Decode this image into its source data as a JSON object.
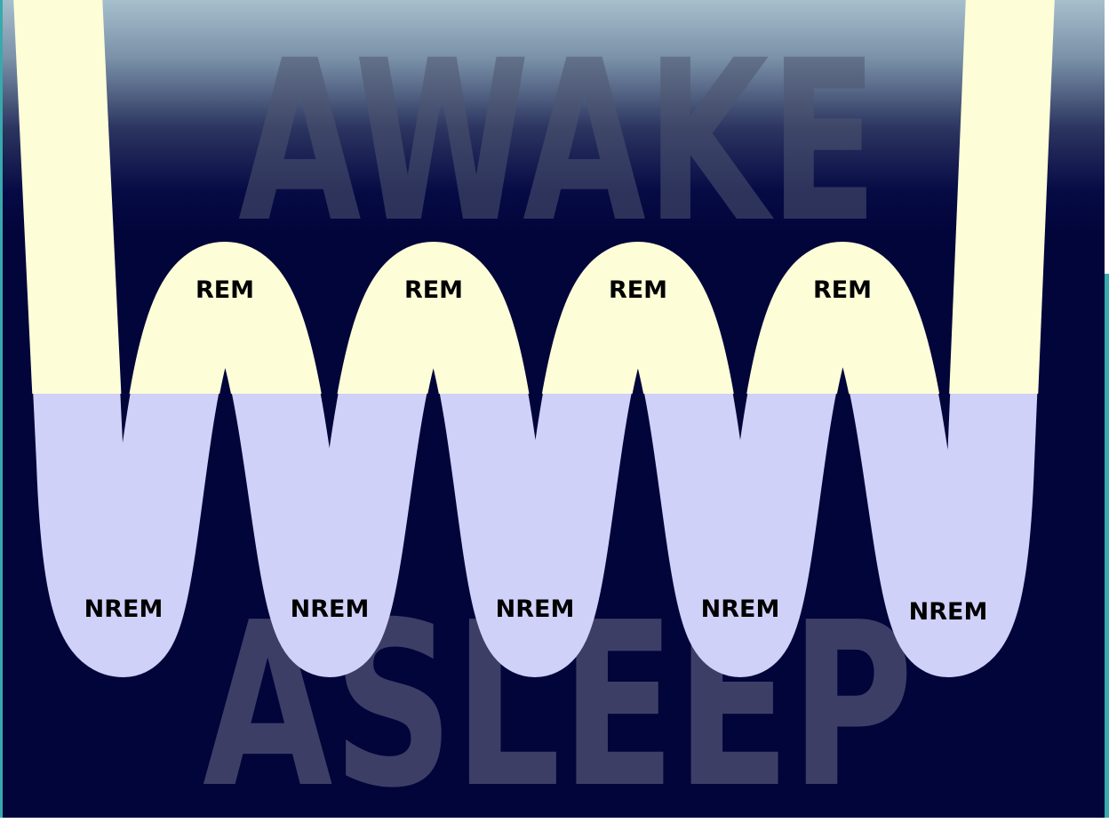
{
  "diagram": {
    "background_word_top": "AWAKE",
    "background_word_bottom": "ASLEEP",
    "rem_labels": [
      "REM",
      "REM",
      "REM",
      "REM"
    ],
    "nrem_labels": [
      "NREM",
      "NREM",
      "NREM",
      "NREM",
      "NREM"
    ]
  },
  "colors": {
    "night": "#02053a",
    "sky_top": "#a6bfcc",
    "channel_awake": "#3a3c6e",
    "channel_nrem": "#d0d1f8",
    "channel_rem": "#fdfdd8",
    "watermark_awake": "#4f5670",
    "watermark_asleep": "#3d3e66",
    "teal_edge": "#38a9ad"
  }
}
